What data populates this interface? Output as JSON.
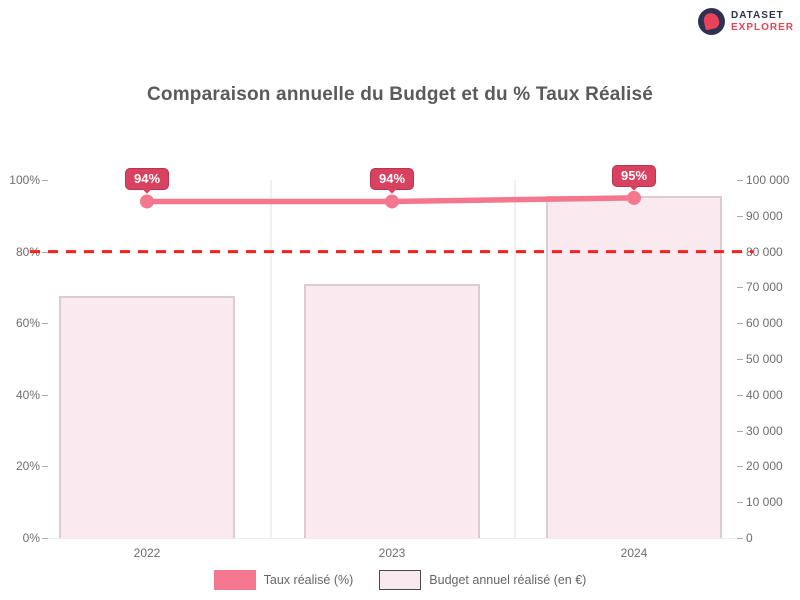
{
  "logo": {
    "line1": "DATASET",
    "line2": "EXPLORER",
    "navy": "#2d3250",
    "red": "#e8435a"
  },
  "chart_data": {
    "type": "bar",
    "title": "Comparaison annuelle du Budget et du % Taux Réalisé",
    "categories": [
      "2022",
      "2023",
      "2024"
    ],
    "series": [
      {
        "name": "Taux réalisé (%)",
        "type": "line",
        "axis": "left",
        "values": [
          94,
          94,
          95
        ],
        "point_labels": [
          "94%",
          "94%",
          "95%"
        ],
        "color": "#f4778f",
        "badge_color": "#d8415f",
        "badge_border": "#b53551"
      },
      {
        "name": "Budget annuel réalisé (en €)",
        "type": "bar",
        "axis": "right",
        "values": [
          67500,
          71000,
          95500
        ],
        "fill": "#fbe9f0",
        "border": "#ddcbd2"
      }
    ],
    "target_line": {
      "value": 80,
      "axis": "left",
      "color": "#fa1f1f",
      "style": "dashed"
    },
    "left_axis": {
      "min": 0,
      "max": 100,
      "step": 20,
      "tick_labels": [
        "100%",
        "80%",
        "60%",
        "40%",
        "20%",
        "0%"
      ],
      "tick_values": [
        100,
        80,
        60,
        40,
        20,
        0
      ]
    },
    "right_axis": {
      "min": 0,
      "max": 100000,
      "step": 10000,
      "tick_labels": [
        "100 000",
        "90 000",
        "80 000",
        "70 000",
        "60 000",
        "50 000",
        "40 000",
        "30 000",
        "20 000",
        "10 000",
        "0"
      ],
      "tick_values": [
        100000,
        90000,
        80000,
        70000,
        60000,
        50000,
        40000,
        30000,
        20000,
        10000,
        0
      ]
    },
    "legend_position": "bottom",
    "grid": "faint-vertical-only"
  }
}
